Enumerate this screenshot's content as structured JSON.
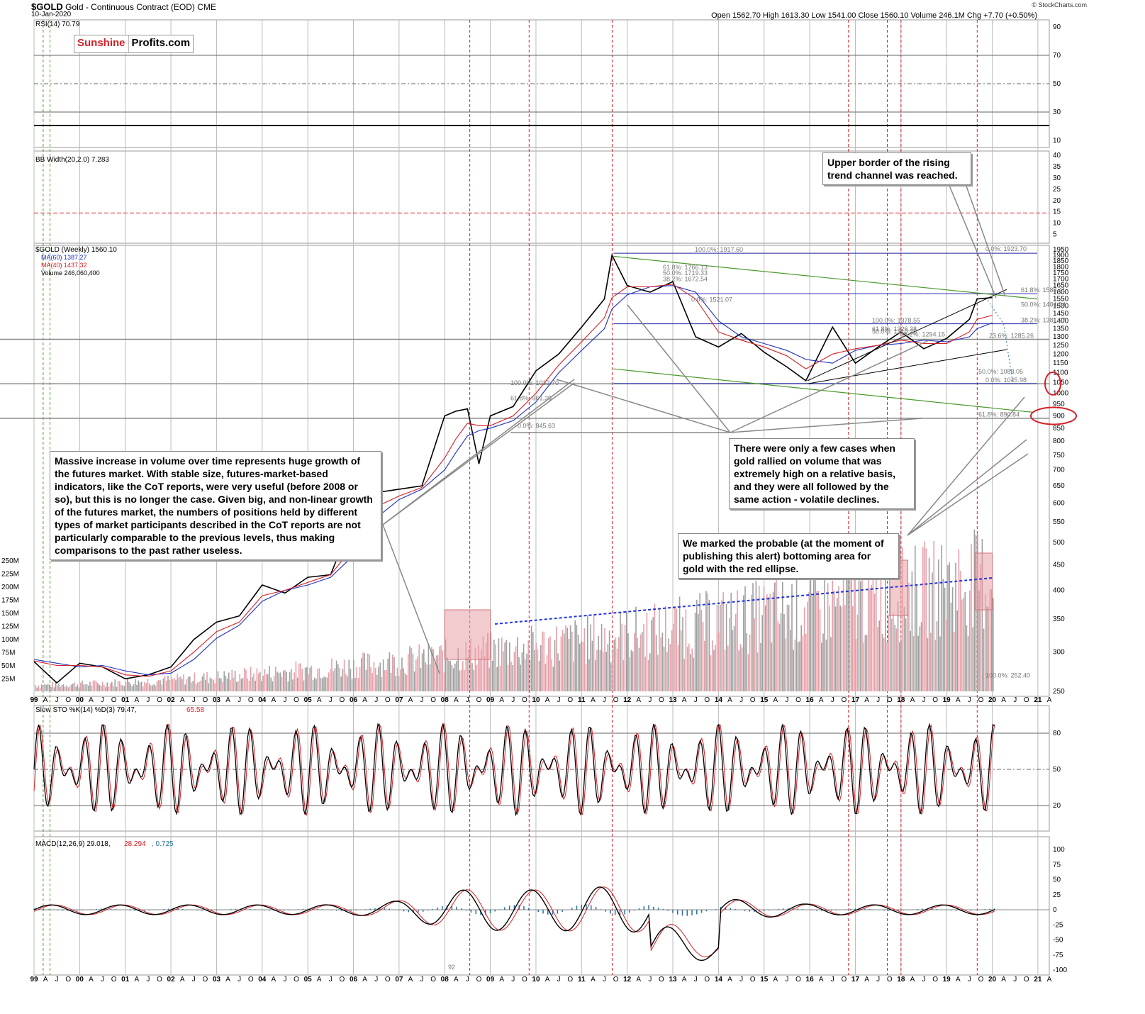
{
  "header": {
    "symbol": "$GOLD",
    "title": "Gold - Continuous Contract (EOD)",
    "exchange": "CME",
    "date": "10-Jan-2020",
    "ohlc": "Open 1562.70  High 1613.30  Low 1541.00  Close 1560.10  Volume 246.1M  Chg +7.70 (+0.50%)",
    "copyright": "© StockCharts.com"
  },
  "logo": {
    "part1": "Sunshine",
    "part2": "Profits.com"
  },
  "colors": {
    "price": "#000000",
    "ma60": "#1f2fbf",
    "ma40": "#d42127",
    "volume_up": "#e8a0a8",
    "volume_down": "#a0a0a0",
    "fib_blue": "#2222aa",
    "trend_green": "#4a9a2a",
    "macd_hist": "#2a6fa0"
  },
  "panels": {
    "rsi": {
      "label": "RSI(14) 70.79",
      "ticks": [
        "90",
        "70",
        "50",
        "30",
        "10"
      ]
    },
    "bb": {
      "label": "BB Width(20,2.0) 7.283",
      "ticks": [
        "40",
        "35",
        "30",
        "25",
        "20",
        "15",
        "10",
        "5"
      ]
    },
    "price": {
      "label1": "$GOLD (Weekly) 1560.10",
      "label2": "MA(60) 1387.27",
      "label3": "MA(40) 1437.32",
      "label4": "Volume 246,060,400",
      "ticks": [
        "1950",
        "1900",
        "1850",
        "1800",
        "1750",
        "1700",
        "1650",
        "1600",
        "1550",
        "1500",
        "1450",
        "1400",
        "1350",
        "1300",
        "1250",
        "1200",
        "1150",
        "1100",
        "1050",
        "1000",
        "950",
        "900",
        "850",
        "800",
        "750",
        "700",
        "650",
        "600",
        "550",
        "500",
        "450",
        "400",
        "350",
        "300",
        "250"
      ],
      "vol_ticks": [
        "250M",
        "225M",
        "200M",
        "175M",
        "150M",
        "125M",
        "100M",
        "75M",
        "50M",
        "25M"
      ]
    },
    "sto": {
      "label": "Slow STO %K(14) %D(3) 79.47, ",
      "label_red": "65.58",
      "ticks": [
        "80",
        "50",
        "20"
      ]
    },
    "macd": {
      "label": "MACD(12,26,9) 29.018, ",
      "label_red": "28.294",
      "label_blue": ", 0.725",
      "ticks": [
        "100",
        "75",
        "50",
        "25",
        "0",
        "-25",
        "-50",
        "-75",
        "-100"
      ]
    }
  },
  "x_axis": [
    "99",
    "A",
    "J",
    "O",
    "00",
    "A",
    "J",
    "O",
    "01",
    "A",
    "J",
    "O",
    "02",
    "A",
    "J",
    "O",
    "03",
    "A",
    "J",
    "O",
    "04",
    "A",
    "J",
    "O",
    "05",
    "A",
    "J",
    "O",
    "06",
    "A",
    "J",
    "O",
    "07",
    "A",
    "J",
    "O",
    "08",
    "A",
    "J",
    "O",
    "09",
    "A",
    "J",
    "O",
    "10",
    "A",
    "J",
    "O",
    "11",
    "A",
    "J",
    "O",
    "12",
    "A",
    "J",
    "O",
    "13",
    "A",
    "J",
    "O",
    "14",
    "A",
    "J",
    "O",
    "15",
    "A",
    "J",
    "O",
    "16",
    "A",
    "J",
    "O",
    "17",
    "A",
    "J",
    "O",
    "18",
    "A",
    "J",
    "O",
    "19",
    "A",
    "J",
    "O",
    "20",
    "A",
    "J",
    "O",
    "21",
    "A"
  ],
  "fib_labels": [
    "100.0%: 1917.60",
    "61.8%: 1766.13",
    "50.0%: 1719.33",
    "38.2%: 1672.54",
    "0.0%: 1521.07",
    "0.0%: 1923.70",
    "61.8%: 1588.41",
    "50.0%: 1484.84",
    "38.2%: 1381.27",
    "100.0%: 1378.55",
    "61.8%: 1326.38",
    "50.0%: 1310.26",
    "38.2%: 1294.15",
    "23.6%: 1285.26",
    "50.0%: 1088.05",
    "0.0%: 1045.98",
    "61.8%: 890.84",
    "100.0%: 1032.70",
    "61.8%: 961.39",
    "0.0%: 845.63",
    "100.0%: 252.40"
  ],
  "annotations": {
    "upper_border": "Upper border of the rising trend channel was reached.",
    "volume_cases": "There were only a few cases when gold rallied on volume that was extremely high on a relative basis, and they were all followed by the same action - volatile declines.",
    "bottoming": "We marked the probable (at the moment of publishing this alert) bottoming area for gold with the red ellipse.",
    "futures": "Massive increase in volume over time represents huge growth of the futures market. With stable size, futures-market-based indicators, like the CoT reports, were very useful (before 2008 or so), but this is no longer the case. Given big, and non-linear growth of the futures market, the numbers of positions held by different types of market participants described in the CoT reports are not particularly comparable to the previous levels, thus making comparisons to the past rather useless."
  },
  "misc_label": "92",
  "chart_data": {
    "type": "line",
    "title": "$GOLD Gold - Continuous Contract (EOD) CME",
    "xlabel": "",
    "ylabel": "",
    "log_scale": true,
    "x": [
      "1999-01",
      "1999-07",
      "2000-01",
      "2000-07",
      "2001-01",
      "2001-07",
      "2002-01",
      "2002-07",
      "2003-01",
      "2003-07",
      "2004-01",
      "2004-07",
      "2005-01",
      "2005-07",
      "2006-01",
      "2006-07",
      "2007-01",
      "2007-07",
      "2008-01",
      "2008-04",
      "2008-07",
      "2008-10",
      "2009-01",
      "2009-07",
      "2010-01",
      "2010-07",
      "2011-01",
      "2011-07",
      "2011-09",
      "2012-01",
      "2012-07",
      "2013-01",
      "2013-07",
      "2014-01",
      "2014-07",
      "2015-01",
      "2015-07",
      "2015-12",
      "2016-07",
      "2017-01",
      "2017-07",
      "2018-01",
      "2018-07",
      "2019-01",
      "2019-07",
      "2019-09",
      "2020-01"
    ],
    "series": [
      {
        "name": "$GOLD (Weekly)",
        "values": [
          287,
          260,
          285,
          280,
          265,
          270,
          280,
          318,
          345,
          355,
          410,
          395,
          425,
          430,
          560,
          630,
          640,
          650,
          900,
          920,
          930,
          720,
          900,
          940,
          1110,
          1200,
          1360,
          1550,
          1900,
          1650,
          1600,
          1680,
          1300,
          1240,
          1320,
          1210,
          1130,
          1060,
          1360,
          1150,
          1240,
          1330,
          1230,
          1290,
          1410,
          1550,
          1560
        ]
      },
      {
        "name": "MA(60)",
        "values": [
          290,
          285,
          280,
          282,
          275,
          270,
          272,
          290,
          320,
          340,
          380,
          400,
          410,
          425,
          470,
          560,
          610,
          640,
          700,
          760,
          820,
          840,
          850,
          880,
          960,
          1100,
          1220,
          1350,
          1480,
          1580,
          1640,
          1650,
          1600,
          1400,
          1300,
          1260,
          1220,
          1170,
          1150,
          1220,
          1250,
          1260,
          1280,
          1270,
          1300,
          1350,
          1387
        ]
      },
      {
        "name": "MA(40)",
        "values": [
          288,
          282,
          282,
          280,
          270,
          268,
          275,
          300,
          330,
          345,
          390,
          400,
          415,
          430,
          490,
          590,
          620,
          645,
          740,
          810,
          870,
          860,
          860,
          900,
          1000,
          1140,
          1270,
          1420,
          1560,
          1640,
          1640,
          1660,
          1550,
          1330,
          1280,
          1240,
          1190,
          1120,
          1200,
          1230,
          1250,
          1280,
          1260,
          1260,
          1330,
          1410,
          1437
        ]
      }
    ],
    "y_ticks": [
      250,
      300,
      350,
      400,
      450,
      500,
      550,
      600,
      650,
      700,
      750,
      800,
      850,
      900,
      950,
      1000,
      1050,
      1100,
      1150,
      1200,
      1250,
      1300,
      1350,
      1400,
      1450,
      1500,
      1550,
      1600,
      1650,
      1700,
      1750,
      1800,
      1850,
      1900,
      1950
    ],
    "rsi_last": 70.79,
    "bb_width_last": 7.283,
    "sto_k": 79.47,
    "sto_d": 65.58,
    "macd": 29.018,
    "macd_signal": 28.294,
    "macd_hist": 0.725
  }
}
